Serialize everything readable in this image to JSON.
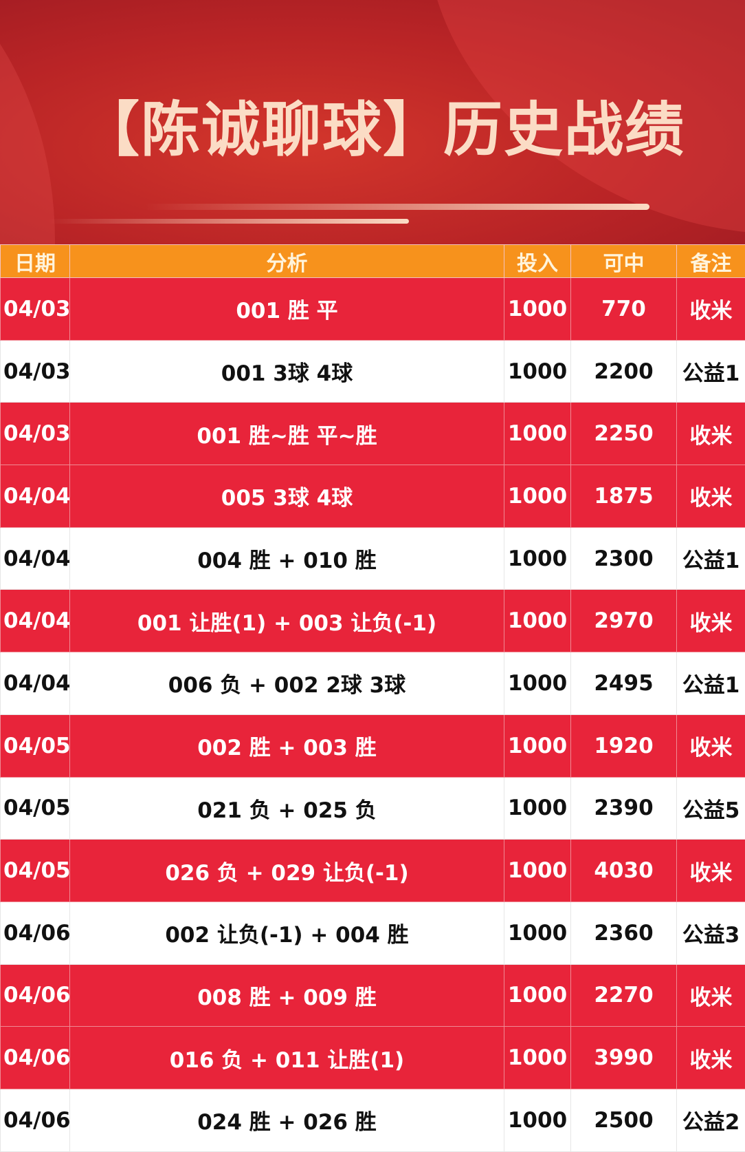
{
  "title": "【陈诚聊球】历史战绩",
  "colors": {
    "red_row": "#e8243a",
    "header": "#f7921c",
    "title_text": "#fbdcc5",
    "banner": "#b92426"
  },
  "headers": [
    "日期",
    "分析",
    "投入",
    "可中",
    "备注"
  ],
  "rows": [
    {
      "date": "04/03",
      "analysis": "001 胜 平",
      "stake": "1000",
      "payout": "770",
      "note": "收米",
      "style": "red"
    },
    {
      "date": "04/03",
      "analysis": "001 3球 4球",
      "stake": "1000",
      "payout": "2200",
      "note": "公益1",
      "style": "white"
    },
    {
      "date": "04/03",
      "analysis": "001 胜~胜 平~胜",
      "stake": "1000",
      "payout": "2250",
      "note": "收米",
      "style": "red"
    },
    {
      "date": "04/04",
      "analysis": "005 3球 4球",
      "stake": "1000",
      "payout": "1875",
      "note": "收米",
      "style": "red"
    },
    {
      "date": "04/04",
      "analysis": "004 胜 + 010 胜",
      "stake": "1000",
      "payout": "2300",
      "note": "公益1",
      "style": "white"
    },
    {
      "date": "04/04",
      "analysis": "001 让胜(1) + 003 让负(-1)",
      "stake": "1000",
      "payout": "2970",
      "note": "收米",
      "style": "red"
    },
    {
      "date": "04/04",
      "analysis": "006 负 + 002 2球 3球",
      "stake": "1000",
      "payout": "2495",
      "note": "公益1",
      "style": "white"
    },
    {
      "date": "04/05",
      "analysis": "002 胜 + 003 胜",
      "stake": "1000",
      "payout": "1920",
      "note": "收米",
      "style": "red"
    },
    {
      "date": "04/05",
      "analysis": "021 负 + 025 负",
      "stake": "1000",
      "payout": "2390",
      "note": "公益5",
      "style": "white"
    },
    {
      "date": "04/05",
      "analysis": "026 负 + 029 让负(-1)",
      "stake": "1000",
      "payout": "4030",
      "note": "收米",
      "style": "red"
    },
    {
      "date": "04/06",
      "analysis": "002 让负(-1) + 004 胜",
      "stake": "1000",
      "payout": "2360",
      "note": "公益3",
      "style": "white"
    },
    {
      "date": "04/06",
      "analysis": "008 胜 + 009 胜",
      "stake": "1000",
      "payout": "2270",
      "note": "收米",
      "style": "red"
    },
    {
      "date": "04/06",
      "analysis": "016 负 + 011 让胜(1)",
      "stake": "1000",
      "payout": "3990",
      "note": "收米",
      "style": "red"
    },
    {
      "date": "04/06",
      "analysis": "024 胜 + 026 胜",
      "stake": "1000",
      "payout": "2500",
      "note": "公益2",
      "style": "white"
    }
  ]
}
